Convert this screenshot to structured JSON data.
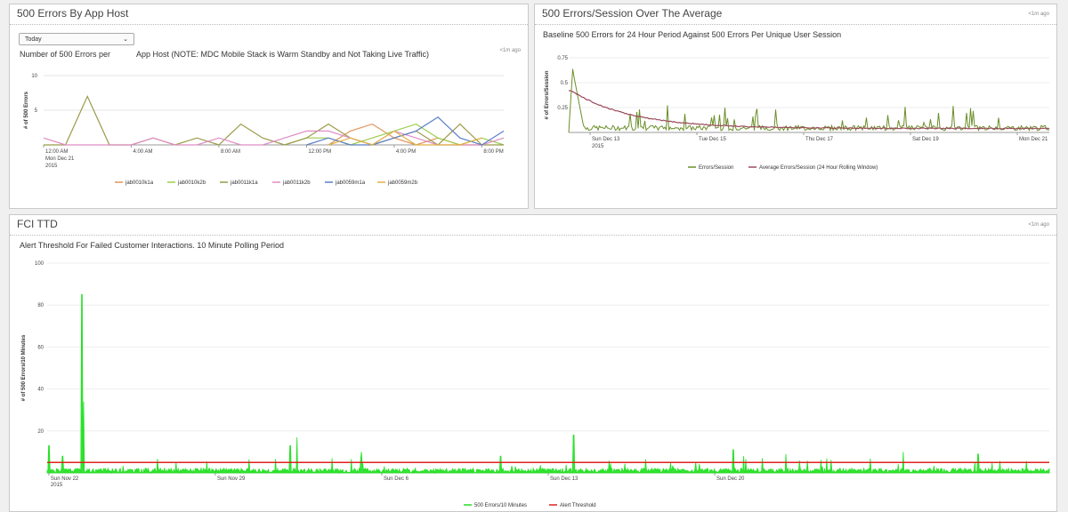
{
  "panels": {
    "p1": {
      "title": "500 Errors By App Host",
      "dropdown_value": "Today",
      "subtitle_left": "Number of 500 Errors per",
      "subtitle_right": "App Host (NOTE: MDC Mobile Stack is Warm Standby and Not Taking Live Traffic)",
      "updated": "<1m ago"
    },
    "p2": {
      "title": "500 Errors/Session Over The Average",
      "subtitle": "Baseline 500 Errors for 24 Hour Period Against 500 Errors Per Unique User Session",
      "updated": "<1m ago"
    },
    "p3": {
      "title": "FCI TTD",
      "subtitle": "Alert Threshold For Failed Customer Interactions. 10 Minute Polling Period",
      "updated": "<1m ago"
    }
  },
  "chart_data": [
    {
      "type": "line",
      "ylabel": "# of 500 Errors",
      "ylim": [
        0,
        10
      ],
      "yticks": [
        "10",
        "5"
      ],
      "xtick_labels": [
        "12:00 AM",
        "4:00 AM",
        "8:00 AM",
        "12:00 PM",
        "4:00 PM",
        "8:00 PM"
      ],
      "xtick_sublabels": [
        "Mon Dec 21",
        "2015"
      ],
      "x_hours": [
        0,
        1,
        2,
        3,
        4,
        5,
        6,
        7,
        8,
        9,
        10,
        11,
        12,
        13,
        14,
        15,
        16,
        17,
        18,
        19,
        20,
        21
      ],
      "legend_position": "bottom",
      "series": [
        {
          "name": "jab0010k1a",
          "color": "#e0945a",
          "values": [
            null,
            null,
            null,
            null,
            null,
            null,
            null,
            null,
            null,
            null,
            null,
            null,
            null,
            0,
            2,
            3,
            1,
            0,
            1,
            0,
            0,
            null
          ]
        },
        {
          "name": "jab0010k2b",
          "color": "#9acd4a",
          "values": [
            null,
            null,
            null,
            null,
            null,
            null,
            null,
            null,
            null,
            null,
            null,
            0,
            1,
            1,
            0,
            1,
            2,
            3,
            1,
            0,
            1,
            0
          ]
        },
        {
          "name": "jab0011k1a",
          "color": "#9b9a4a",
          "values": [
            0,
            0,
            7,
            0,
            0,
            1,
            0,
            1,
            0,
            3,
            1,
            0,
            1,
            3,
            1,
            0,
            1,
            2,
            0,
            3,
            0,
            0
          ]
        },
        {
          "name": "jab0011k2b",
          "color": "#e08cc4",
          "values": [
            1,
            0,
            0,
            0,
            0,
            1,
            0,
            0,
            1,
            0,
            0,
            1,
            2,
            2,
            1,
            0,
            2,
            1,
            0,
            0,
            0,
            1
          ]
        },
        {
          "name": "jab0059m1a",
          "color": "#5b7fc7",
          "values": [
            null,
            null,
            null,
            null,
            null,
            null,
            null,
            null,
            null,
            null,
            null,
            null,
            0,
            1,
            0,
            0,
            1,
            2,
            4,
            1,
            0,
            2
          ]
        },
        {
          "name": "jab0059m2b",
          "color": "#e0b040",
          "values": [
            null,
            null,
            null,
            null,
            null,
            null,
            null,
            null,
            null,
            null,
            null,
            null,
            null,
            0,
            1,
            0,
            2,
            0,
            0,
            0,
            1,
            null
          ]
        }
      ]
    },
    {
      "type": "line",
      "ylabel": "# of Errors/Session",
      "ylim": [
        0,
        0.75
      ],
      "yticks": [
        "0.75",
        "0.5",
        "0.25"
      ],
      "xtick_labels": [
        "Sun Dec 13",
        "Tue Dec 15",
        "Thu Dec 17",
        "Sat Dec 19",
        "Mon Dec 21"
      ],
      "xtick_sublabels": [
        "2015"
      ],
      "legend_position": "bottom",
      "series": [
        {
          "name": "Errors/Session",
          "color": "#6b8f2a"
        },
        {
          "name": "Average Errors/Session (24 Hour Rolling Window)",
          "color": "#9a4a5a"
        }
      ],
      "peak_errors_per_session": 0.68,
      "average_peak": 0.42,
      "average_floor": 0.04
    },
    {
      "type": "area",
      "ylabel": "# of 500 Errors/10 Minutes",
      "ylim": [
        0,
        100
      ],
      "yticks": [
        "100",
        "80",
        "60",
        "40",
        "20"
      ],
      "xtick_labels": [
        "Sun Nov 22",
        "Sun Nov 29",
        "Sun Dec 6",
        "Sun Dec 13",
        "Sun Dec 20"
      ],
      "xtick_sublabels": [
        "2015"
      ],
      "legend_position": "bottom",
      "series": [
        {
          "name": "500 Errors/10 Minutes",
          "color": "#22e022"
        },
        {
          "name": "Alert Threshold",
          "color": "#e02020",
          "value": 5
        }
      ],
      "spikes_day_value": [
        [
          0.1,
          13
        ],
        [
          0.9,
          8
        ],
        [
          2.05,
          85
        ],
        [
          2.15,
          34
        ],
        [
          14.3,
          13
        ],
        [
          14.7,
          17
        ],
        [
          18.5,
          10
        ],
        [
          26.7,
          8
        ],
        [
          31.0,
          18
        ],
        [
          40.4,
          11
        ],
        [
          41.0,
          8
        ],
        [
          42.1,
          7
        ],
        [
          43.5,
          9
        ],
        [
          50.4,
          10
        ],
        [
          54.8,
          9
        ]
      ]
    }
  ]
}
